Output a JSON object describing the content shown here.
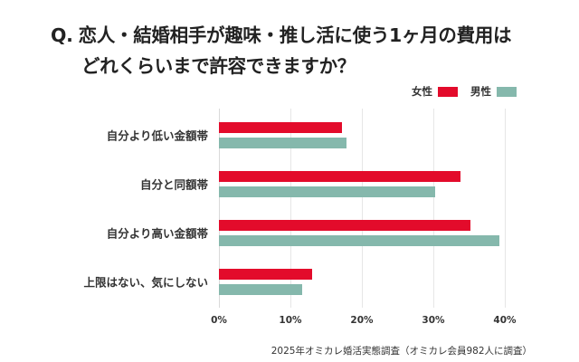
{
  "title": {
    "line1_prefix": "Q.",
    "line1": "恋人・結婚相手が趣味・推し活に使う1ヶ月の費用は",
    "line2": "どれくらいまで許容できますか？"
  },
  "legend": [
    {
      "label": "女性",
      "color": "#E30B2B"
    },
    {
      "label": "男性",
      "color": "#85B8AC"
    }
  ],
  "axis": {
    "ticks": [
      "0%",
      "10%",
      "20%",
      "30%",
      "40%"
    ]
  },
  "footer": "2025年オミカレ婚活実態調査（オミカレ会員982人に調査）",
  "chart_data": {
    "type": "bar",
    "orientation": "horizontal",
    "title": "Q. 恋人・結婚相手が趣味・推し活に使う1ヶ月の費用はどれくらいまで許容できますか？",
    "categories": [
      "自分より低い金額帯",
      "自分と同額帯",
      "自分より高い金額帯",
      "上限はない、気にしない"
    ],
    "series": [
      {
        "name": "女性",
        "color": "#E30B2B",
        "values": [
          17.2,
          33.8,
          35.2,
          13.0
        ]
      },
      {
        "name": "男性",
        "color": "#85B8AC",
        "values": [
          17.9,
          30.3,
          39.2,
          11.7
        ]
      }
    ],
    "xlabel": "",
    "ylabel": "",
    "xlim": [
      0,
      40
    ],
    "x_ticks": [
      "0%",
      "10%",
      "20%",
      "30%",
      "40%"
    ],
    "grid": true,
    "legend_position": "top-right",
    "annotation": "2025年オミカレ婚活実態調査（オミカレ会員982人に調査）"
  }
}
